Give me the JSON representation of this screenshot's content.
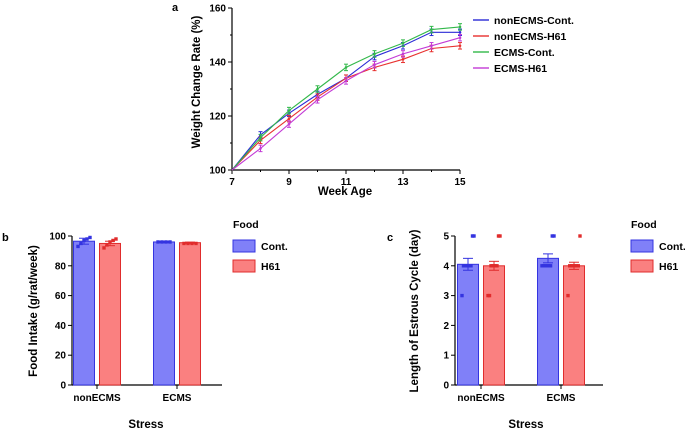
{
  "panels": {
    "a": "a",
    "b": "b",
    "c": "c"
  },
  "colors": {
    "nonECMS_cont": "#2b2bd6",
    "nonECMS_h61": "#e8312f",
    "ECMS_cont": "#32b84a",
    "ECMS_h61": "#c33bd6",
    "bar_cont_fill": "#8080f8",
    "bar_cont_edge": "#3434e0",
    "bar_h61_fill": "#fa8080",
    "bar_h61_edge": "#e02c2c"
  },
  "chart_data": [
    {
      "id": "a",
      "type": "line",
      "xlabel": "Week Age",
      "ylabel": "Weight Change Rate (%)",
      "x": [
        7,
        8,
        9,
        10,
        11,
        12,
        13,
        14,
        15
      ],
      "xlim": [
        7,
        15
      ],
      "ylim": [
        100,
        160
      ],
      "xticks": [
        "7",
        "9",
        "11",
        "13",
        "15"
      ],
      "yticks": [
        "100",
        "120",
        "140",
        "160"
      ],
      "series": [
        {
          "name": "nonECMS-Cont.",
          "values": [
            100,
            113,
            121,
            128,
            134,
            142,
            146,
            151,
            151
          ],
          "err": 1.2
        },
        {
          "name": "nonECMS-H61",
          "values": [
            100,
            111,
            119,
            127,
            134,
            138,
            141,
            145,
            146
          ],
          "err": 1.2
        },
        {
          "name": "ECMS-Cont.",
          "values": [
            100,
            112,
            122,
            130,
            138,
            143,
            147,
            152,
            153
          ],
          "err": 1.2
        },
        {
          "name": "ECMS-H61",
          "values": [
            100,
            108,
            117,
            126,
            133,
            139,
            143,
            146,
            149
          ],
          "err": 1.2
        }
      ]
    },
    {
      "id": "b",
      "type": "bar",
      "xlabel": "Stress",
      "ylabel": "Food Intake (g/rat/week)",
      "legend_title": "Food",
      "categories": [
        "nonECMS",
        "ECMS"
      ],
      "ylim": [
        0,
        100
      ],
      "yticks": [
        "0",
        "20",
        "40",
        "60",
        "80",
        "100"
      ],
      "series": [
        {
          "name": "Cont.",
          "values": [
            96.5,
            96
          ],
          "err": [
            2,
            0.5
          ],
          "points": [
            [
              93,
              95,
              97,
              98,
              99
            ],
            [
              96,
              96,
              96,
              96
            ]
          ]
        },
        {
          "name": "H61",
          "values": [
            95,
            95.5
          ],
          "err": [
            1.5,
            0.4
          ],
          "points": [
            [
              92,
              94,
              96,
              97,
              98
            ],
            [
              95,
              95,
              95,
              95
            ]
          ]
        }
      ]
    },
    {
      "id": "c",
      "type": "bar",
      "xlabel": "Stress",
      "ylabel": "Length of Estrous Cycle (day)",
      "legend_title": "Food",
      "categories": [
        "nonECMS",
        "ECMS"
      ],
      "ylim": [
        0,
        5
      ],
      "yticks": [
        "0",
        "1",
        "2",
        "3",
        "4",
        "5"
      ],
      "series": [
        {
          "name": "Cont.",
          "values": [
            4.05,
            4.25
          ],
          "err": [
            0.2,
            0.15
          ],
          "points": [
            [
              3,
              4,
              4,
              4,
              4,
              4,
              4,
              5,
              5
            ],
            [
              4,
              4,
              4,
              4,
              4,
              4,
              5,
              5
            ]
          ]
        },
        {
          "name": "H61",
          "values": [
            4.0,
            4.0
          ],
          "err": [
            0.15,
            0.12
          ],
          "points": [
            [
              3,
              3,
              4,
              4,
              4,
              4,
              4,
              5,
              5
            ],
            [
              3,
              4,
              4,
              4,
              4,
              4,
              4,
              5
            ]
          ]
        }
      ]
    }
  ]
}
